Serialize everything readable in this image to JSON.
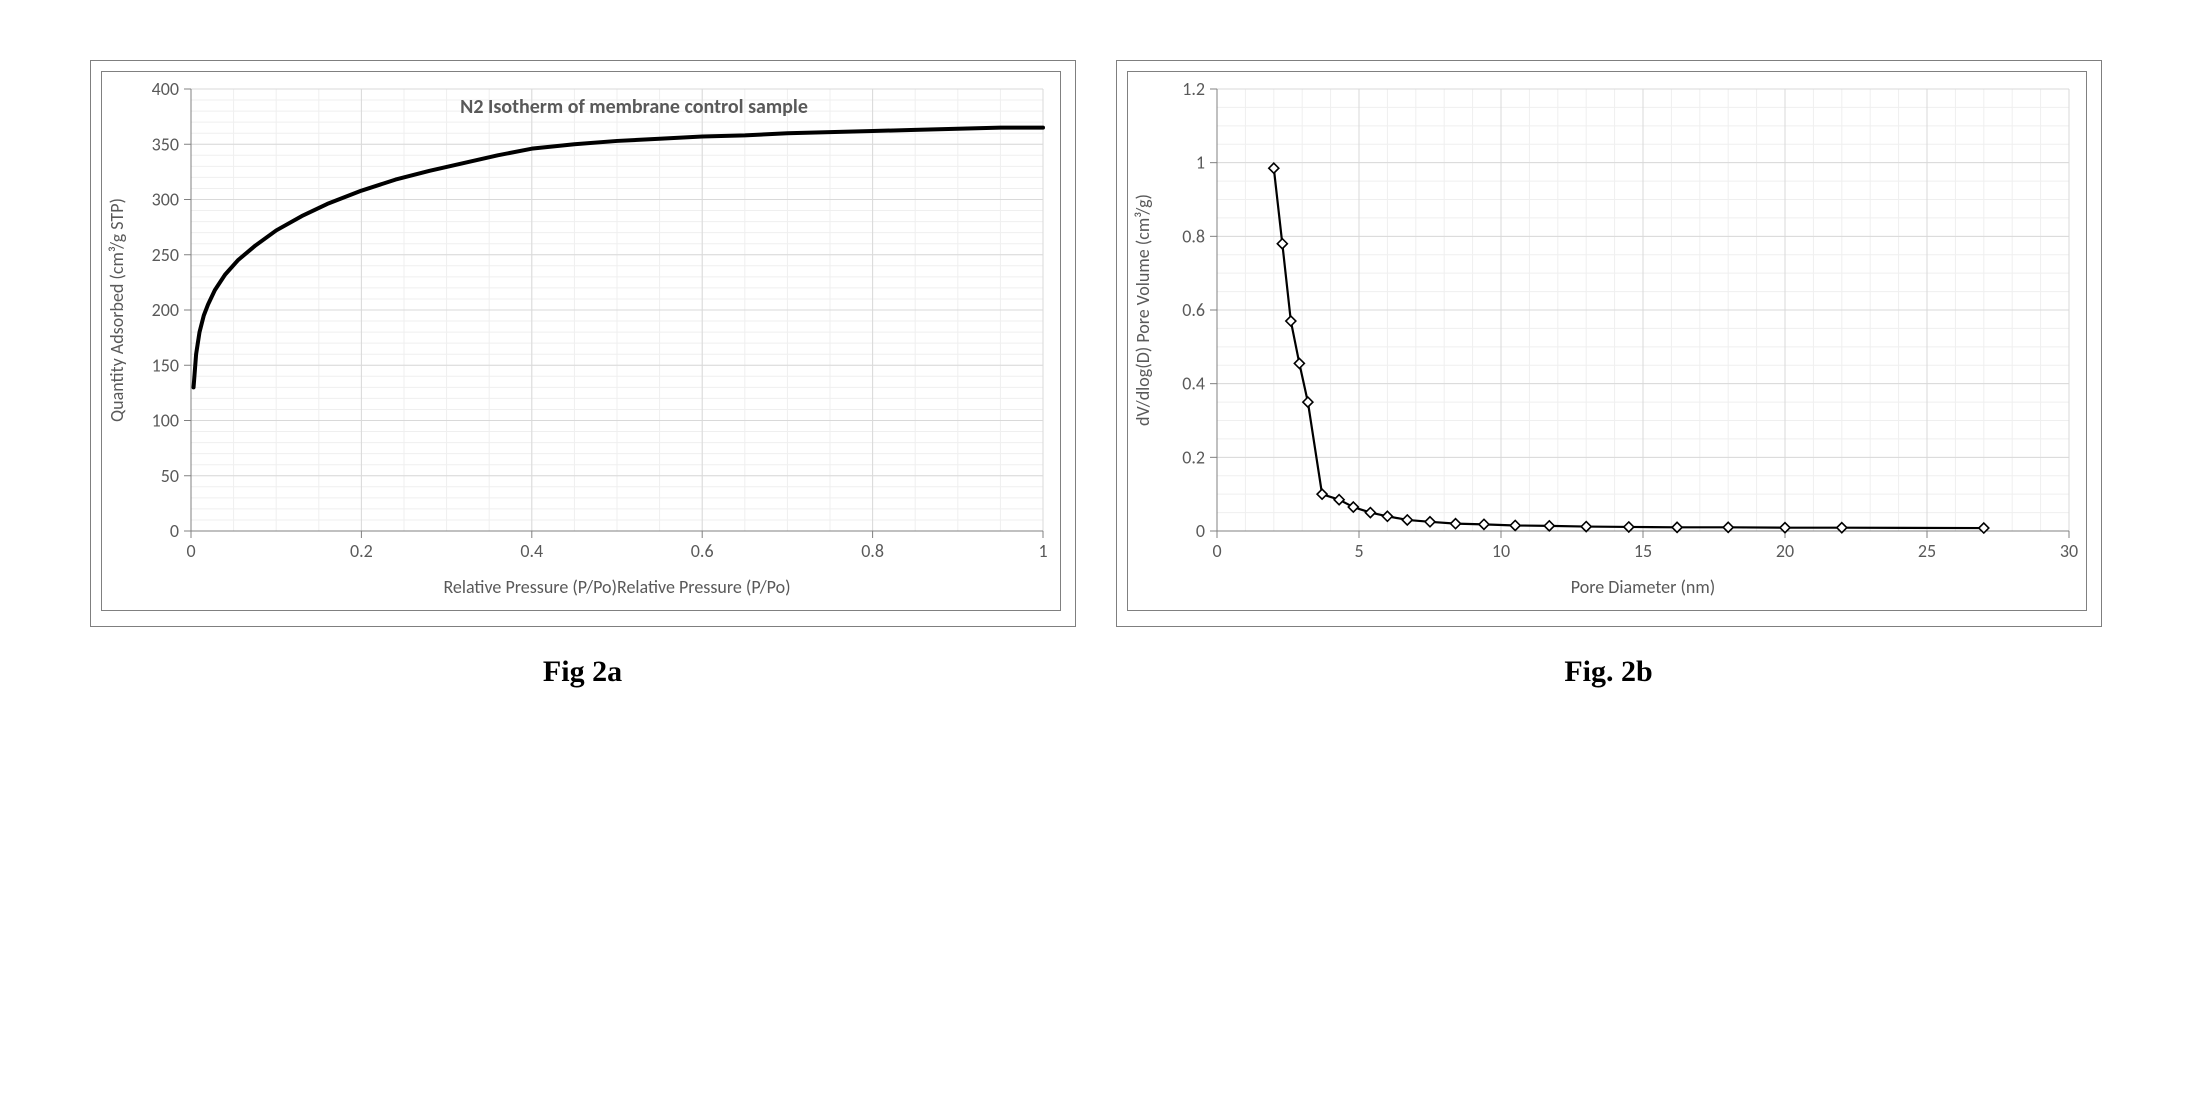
{
  "figure_a": {
    "caption": "Fig 2a",
    "type": "line",
    "series_label": "N2 Isotherm of membrane control sample",
    "xlabel": "Relative Pressure (P/Po)Relative Pressure (P/Po)",
    "ylabel": "Quantity Adsorbed (cm³/g STP)",
    "xlim": [
      0,
      1
    ],
    "ylim": [
      0,
      400
    ],
    "xticks": [
      0,
      0.2,
      0.4,
      0.6,
      0.8,
      1
    ],
    "yticks": [
      0,
      50,
      100,
      150,
      200,
      250,
      300,
      350,
      400
    ],
    "line_color": "#000000",
    "line_width": 4,
    "background_color": "#ffffff",
    "grid_major_color": "#d9d9d9",
    "grid_minor_color": "#efefef",
    "axis_color": "#808080",
    "tick_fontsize": 18,
    "label_fontsize": 18,
    "series_label_fontsize": 20,
    "xminor_step": 0.05,
    "yminor_step": 10,
    "data": [
      {
        "x": 0.003,
        "y": 130
      },
      {
        "x": 0.006,
        "y": 160
      },
      {
        "x": 0.01,
        "y": 180
      },
      {
        "x": 0.015,
        "y": 195
      },
      {
        "x": 0.02,
        "y": 205
      },
      {
        "x": 0.028,
        "y": 218
      },
      {
        "x": 0.04,
        "y": 232
      },
      {
        "x": 0.055,
        "y": 245
      },
      {
        "x": 0.075,
        "y": 258
      },
      {
        "x": 0.1,
        "y": 272
      },
      {
        "x": 0.13,
        "y": 285
      },
      {
        "x": 0.16,
        "y": 296
      },
      {
        "x": 0.2,
        "y": 308
      },
      {
        "x": 0.24,
        "y": 318
      },
      {
        "x": 0.28,
        "y": 326
      },
      {
        "x": 0.32,
        "y": 333
      },
      {
        "x": 0.36,
        "y": 340
      },
      {
        "x": 0.4,
        "y": 346
      },
      {
        "x": 0.45,
        "y": 350
      },
      {
        "x": 0.5,
        "y": 353
      },
      {
        "x": 0.55,
        "y": 355
      },
      {
        "x": 0.6,
        "y": 357
      },
      {
        "x": 0.65,
        "y": 358
      },
      {
        "x": 0.7,
        "y": 360
      },
      {
        "x": 0.75,
        "y": 361
      },
      {
        "x": 0.8,
        "y": 362
      },
      {
        "x": 0.85,
        "y": 363
      },
      {
        "x": 0.9,
        "y": 364
      },
      {
        "x": 0.95,
        "y": 365
      },
      {
        "x": 1.0,
        "y": 365
      }
    ]
  },
  "figure_b": {
    "caption": "Fig. 2b",
    "type": "line-scatter",
    "xlabel": "Pore Diameter (nm)",
    "ylabel": "dV/dlog(D) Pore Volume (cm³/g)",
    "xlim": [
      0,
      30
    ],
    "ylim": [
      0,
      1.2
    ],
    "xticks": [
      0,
      5,
      10,
      15,
      20,
      25,
      30
    ],
    "yticks": [
      0,
      0.2,
      0.4,
      0.6,
      0.8,
      1,
      1.2
    ],
    "line_color": "#000000",
    "line_width": 2.2,
    "marker_shape": "diamond",
    "marker_stroke": "#000000",
    "marker_fill": "#ffffff",
    "marker_size": 10,
    "background_color": "#ffffff",
    "grid_major_color": "#d9d9d9",
    "grid_minor_color": "#efefef",
    "axis_color": "#808080",
    "tick_fontsize": 18,
    "label_fontsize": 18,
    "xminor_step": 1,
    "yminor_step": 0.05,
    "data": [
      {
        "x": 2.0,
        "y": 0.985
      },
      {
        "x": 2.3,
        "y": 0.78
      },
      {
        "x": 2.6,
        "y": 0.57
      },
      {
        "x": 2.9,
        "y": 0.455
      },
      {
        "x": 3.2,
        "y": 0.35
      },
      {
        "x": 3.7,
        "y": 0.1
      },
      {
        "x": 4.3,
        "y": 0.085
      },
      {
        "x": 4.8,
        "y": 0.065
      },
      {
        "x": 5.4,
        "y": 0.05
      },
      {
        "x": 6.0,
        "y": 0.04
      },
      {
        "x": 6.7,
        "y": 0.03
      },
      {
        "x": 7.5,
        "y": 0.025
      },
      {
        "x": 8.4,
        "y": 0.02
      },
      {
        "x": 9.4,
        "y": 0.018
      },
      {
        "x": 10.5,
        "y": 0.015
      },
      {
        "x": 11.7,
        "y": 0.014
      },
      {
        "x": 13.0,
        "y": 0.012
      },
      {
        "x": 14.5,
        "y": 0.011
      },
      {
        "x": 16.2,
        "y": 0.01
      },
      {
        "x": 18.0,
        "y": 0.01
      },
      {
        "x": 20.0,
        "y": 0.009
      },
      {
        "x": 22.0,
        "y": 0.009
      },
      {
        "x": 27.0,
        "y": 0.008
      }
    ]
  }
}
